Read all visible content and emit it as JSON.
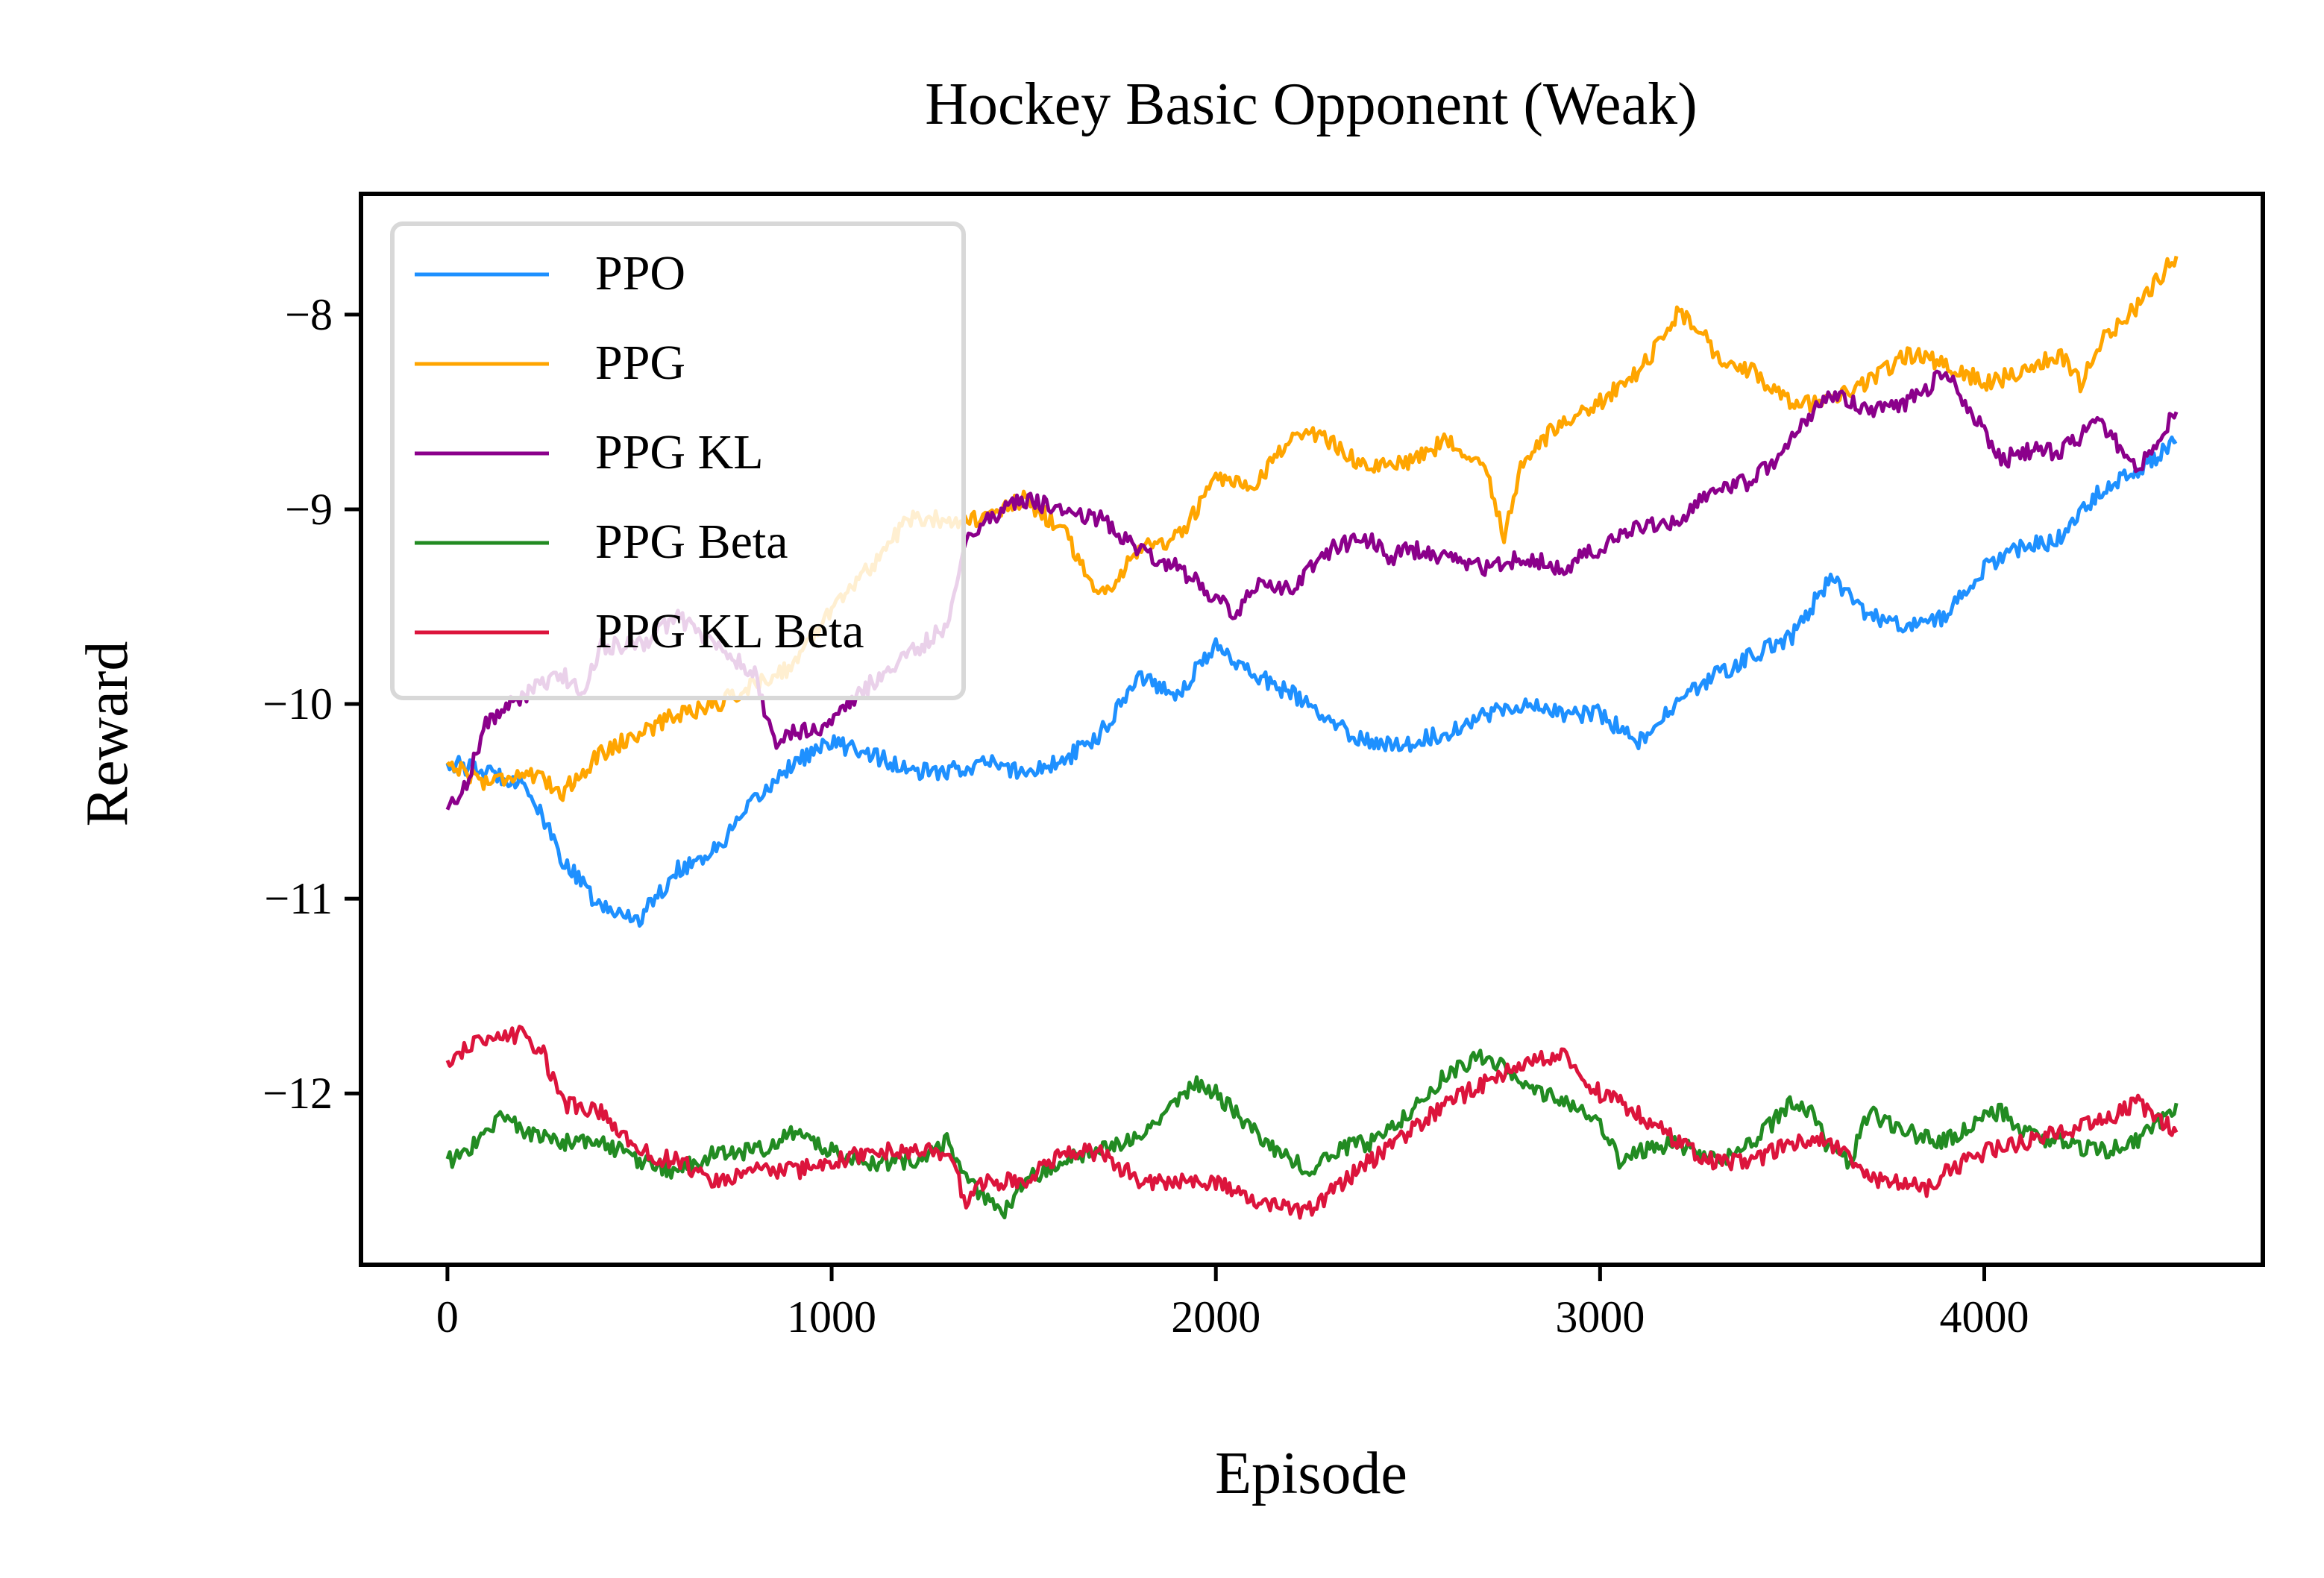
{
  "chart_data": {
    "type": "line",
    "title": "Hockey Basic Opponent (Weak)",
    "xlabel": "Episode",
    "ylabel": "Reward",
    "xlim": [
      -225,
      4725
    ],
    "ylim": [
      -12.88,
      -7.38
    ],
    "xticks": [
      0,
      1000,
      2000,
      3000,
      4000
    ],
    "xtick_labels": [
      "0",
      "1000",
      "2000",
      "3000",
      "4000"
    ],
    "yticks": [
      -8,
      -9,
      -10,
      -11,
      -12
    ],
    "ytick_labels": [
      "−8",
      "−9",
      "−10",
      "−11",
      "−12"
    ],
    "grid": false,
    "legend_position": "upper left",
    "series": [
      {
        "name": "PPO",
        "color": "#1e90ff",
        "x": [
          0,
          100,
          200,
          300,
          400,
          500,
          600,
          700,
          800,
          900,
          1000,
          1100,
          1200,
          1300,
          1400,
          1500,
          1600,
          1700,
          1800,
          1900,
          2000,
          2100,
          2200,
          2300,
          2400,
          2500,
          2600,
          2700,
          2800,
          2900,
          3000,
          3100,
          3200,
          3300,
          3400,
          3500,
          3600,
          3700,
          3800,
          3900,
          4000,
          4100,
          4200,
          4300,
          4400,
          4500
        ],
        "y": [
          -10.3,
          -10.35,
          -10.4,
          -10.8,
          -11.05,
          -11.1,
          -10.85,
          -10.75,
          -10.5,
          -10.3,
          -10.2,
          -10.25,
          -10.35,
          -10.35,
          -10.3,
          -10.35,
          -10.3,
          -10.15,
          -9.85,
          -9.95,
          -9.7,
          -9.85,
          -9.95,
          -10.1,
          -10.2,
          -10.2,
          -10.15,
          -10.05,
          -10.0,
          -10.05,
          -10.05,
          -10.2,
          -10.0,
          -9.85,
          -9.75,
          -9.65,
          -9.35,
          -9.55,
          -9.6,
          -9.55,
          -9.3,
          -9.2,
          -9.15,
          -8.9,
          -8.8,
          -8.65
        ]
      },
      {
        "name": "PPG",
        "color": "#ffa500",
        "x": [
          0,
          100,
          200,
          300,
          400,
          500,
          600,
          700,
          800,
          900,
          1000,
          1100,
          1200,
          1300,
          1400,
          1500,
          1600,
          1700,
          1800,
          1900,
          2000,
          2100,
          2200,
          2300,
          2400,
          2500,
          2600,
          2700,
          2750,
          2800,
          2900,
          3000,
          3100,
          3200,
          3250,
          3300,
          3400,
          3500,
          3600,
          3700,
          3800,
          3900,
          4000,
          4100,
          4200,
          4250,
          4300,
          4400,
          4500
        ],
        "y": [
          -10.3,
          -10.4,
          -10.35,
          -10.45,
          -10.25,
          -10.15,
          -10.05,
          -10.0,
          -9.9,
          -9.8,
          -9.5,
          -9.3,
          -9.05,
          -9.05,
          -9.05,
          -8.95,
          -9.1,
          -9.45,
          -9.2,
          -9.15,
          -8.85,
          -8.9,
          -8.6,
          -8.65,
          -8.8,
          -8.75,
          -8.65,
          -8.75,
          -9.15,
          -8.75,
          -8.55,
          -8.45,
          -8.3,
          -8.0,
          -8.05,
          -8.2,
          -8.3,
          -8.45,
          -8.45,
          -8.35,
          -8.2,
          -8.25,
          -8.35,
          -8.3,
          -8.2,
          -8.35,
          -8.15,
          -7.95,
          -7.7
        ]
      },
      {
        "name": "PPG KL",
        "color": "#8b008b",
        "x": [
          0,
          50,
          100,
          200,
          300,
          350,
          400,
          500,
          600,
          700,
          800,
          850,
          900,
          1000,
          1100,
          1200,
          1300,
          1350,
          1400,
          1500,
          1600,
          1700,
          1800,
          1900,
          2000,
          2050,
          2100,
          2200,
          2300,
          2400,
          2450,
          2500,
          2600,
          2700,
          2800,
          2900,
          3000,
          3100,
          3200,
          3300,
          3400,
          3500,
          3550,
          3600,
          3700,
          3800,
          3900,
          3950,
          4000,
          4050,
          4100,
          4200,
          4300,
          4400,
          4500
        ],
        "y": [
          -10.55,
          -10.4,
          -10.1,
          -9.95,
          -9.85,
          -9.95,
          -9.7,
          -9.7,
          -9.55,
          -9.7,
          -9.85,
          -10.2,
          -10.15,
          -10.1,
          -9.9,
          -9.75,
          -9.6,
          -9.15,
          -9.05,
          -8.95,
          -9.0,
          -9.05,
          -9.2,
          -9.3,
          -9.45,
          -9.55,
          -9.4,
          -9.4,
          -9.2,
          -9.15,
          -9.25,
          -9.2,
          -9.25,
          -9.3,
          -9.25,
          -9.3,
          -9.2,
          -9.1,
          -9.05,
          -8.9,
          -8.85,
          -8.65,
          -8.5,
          -8.4,
          -8.5,
          -8.45,
          -8.3,
          -8.45,
          -8.6,
          -8.75,
          -8.7,
          -8.7,
          -8.55,
          -8.8,
          -8.5
        ]
      },
      {
        "name": "PPG Beta",
        "color": "#228b22",
        "x": [
          0,
          50,
          100,
          150,
          200,
          300,
          400,
          500,
          600,
          700,
          800,
          900,
          1000,
          1100,
          1200,
          1300,
          1350,
          1400,
          1450,
          1500,
          1600,
          1700,
          1800,
          1900,
          1950,
          2000,
          2100,
          2200,
          2250,
          2300,
          2400,
          2500,
          2600,
          2700,
          2800,
          2900,
          3000,
          3050,
          3100,
          3200,
          3300,
          3400,
          3500,
          3550,
          3600,
          3650,
          3700,
          3800,
          3900,
          4000,
          4050,
          4100,
          4200,
          4300,
          4400,
          4500
        ],
        "y": [
          -12.35,
          -12.3,
          -12.2,
          -12.1,
          -12.2,
          -12.25,
          -12.25,
          -12.35,
          -12.4,
          -12.3,
          -12.3,
          -12.2,
          -12.3,
          -12.35,
          -12.35,
          -12.25,
          -12.45,
          -12.55,
          -12.6,
          -12.45,
          -12.35,
          -12.3,
          -12.2,
          -12.05,
          -11.95,
          -12.0,
          -12.2,
          -12.35,
          -12.4,
          -12.3,
          -12.25,
          -12.1,
          -11.9,
          -11.8,
          -11.95,
          -12.05,
          -12.15,
          -12.35,
          -12.3,
          -12.25,
          -12.35,
          -12.25,
          -12.05,
          -12.1,
          -12.3,
          -12.35,
          -12.1,
          -12.2,
          -12.25,
          -12.1,
          -12.1,
          -12.2,
          -12.25,
          -12.3,
          -12.25,
          -12.05
        ]
      },
      {
        "name": "PPG KL Beta",
        "color": "#dc143c",
        "x": [
          0,
          50,
          100,
          150,
          200,
          250,
          300,
          400,
          500,
          600,
          700,
          800,
          900,
          1000,
          1100,
          1200,
          1300,
          1350,
          1400,
          1500,
          1600,
          1700,
          1800,
          1900,
          2000,
          2100,
          2200,
          2250,
          2300,
          2400,
          2500,
          2600,
          2700,
          2800,
          2900,
          3000,
          3100,
          3200,
          3300,
          3400,
          3500,
          3600,
          3700,
          3800,
          3850,
          3900,
          4000,
          4100,
          4200,
          4300,
          4400,
          4500
        ],
        "y": [
          -11.85,
          -11.75,
          -11.75,
          -11.7,
          -11.7,
          -11.8,
          -12.05,
          -12.1,
          -12.3,
          -12.35,
          -12.45,
          -12.4,
          -12.4,
          -12.35,
          -12.3,
          -12.3,
          -12.3,
          -12.55,
          -12.45,
          -12.45,
          -12.3,
          -12.3,
          -12.45,
          -12.45,
          -12.45,
          -12.55,
          -12.6,
          -12.6,
          -12.5,
          -12.35,
          -12.2,
          -12.05,
          -11.95,
          -11.85,
          -11.8,
          -12.0,
          -12.1,
          -12.25,
          -12.35,
          -12.35,
          -12.25,
          -12.25,
          -12.45,
          -12.45,
          -12.5,
          -12.4,
          -12.3,
          -12.25,
          -12.2,
          -12.15,
          -12.05,
          -12.2
        ]
      }
    ]
  }
}
